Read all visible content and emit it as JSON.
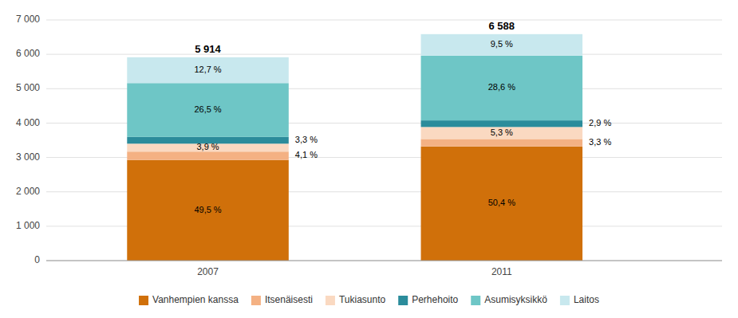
{
  "chart_data": {
    "type": "bar",
    "stacked": true,
    "categories": [
      "2007",
      "2011"
    ],
    "series": [
      {
        "name": "Vanhempien kanssa",
        "color": "#D0700A",
        "values": [
          2927,
          3320
        ],
        "share_labels": [
          "49,5 %",
          "50,4 %"
        ]
      },
      {
        "name": "Itsenäisesti",
        "color": "#F4B183",
        "values": [
          243,
          217
        ],
        "share_labels": [
          "4,1 %",
          "3,3 %"
        ]
      },
      {
        "name": "Tukiasunto",
        "color": "#FAD9C1",
        "values": [
          231,
          349
        ],
        "share_labels": [
          "3,9 %",
          "5,3 %"
        ]
      },
      {
        "name": "Perhehoito",
        "color": "#2B8C9B",
        "values": [
          195,
          191
        ],
        "share_labels": [
          "3,3 %",
          "2,9 %"
        ]
      },
      {
        "name": "Asumisyksikkö",
        "color": "#6EC6C6",
        "values": [
          1567,
          1884
        ],
        "share_labels": [
          "26,5 %",
          "28,6 %"
        ]
      },
      {
        "name": "Laitos",
        "color": "#C8E8EE",
        "values": [
          751,
          626
        ],
        "share_labels": [
          "12,7 %",
          "9,5 %"
        ]
      }
    ],
    "totals": [
      5914,
      6588
    ],
    "total_labels": [
      "5 914",
      "6 588"
    ],
    "ylim": [
      0,
      7000
    ],
    "yticks": [
      0,
      {
        "value": 1000,
        "label": "1 000"
      },
      {
        "value": 2000,
        "label": "2 000"
      },
      {
        "value": 3000,
        "label": "3 000"
      },
      {
        "value": 4000,
        "label": "4 000"
      },
      {
        "value": 5000,
        "label": "5 000"
      },
      {
        "value": 6000,
        "label": "6 000"
      },
      {
        "value": 7000,
        "label": "7 000"
      }
    ],
    "grid": true,
    "legend": "bottom"
  }
}
